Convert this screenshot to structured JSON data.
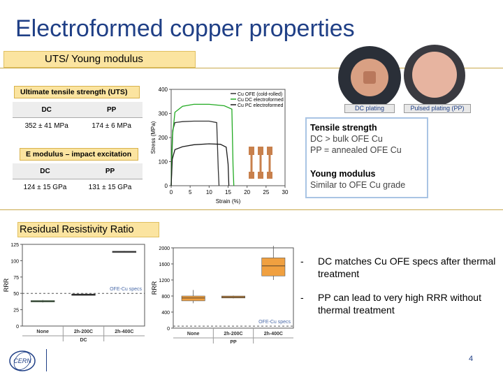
{
  "title": "Electroformed copper properties",
  "uts_section": "UTS/ Young modulus",
  "uts_table": {
    "header": "Ultimate tensile strength (UTS)",
    "columns": [
      "DC",
      "PP"
    ],
    "values": [
      "352 ± 41 MPa",
      "174 ± 6 MPa"
    ]
  },
  "emod_table": {
    "header": "E modulus – impact excitation",
    "columns": [
      "DC",
      "PP"
    ],
    "values": [
      "124 ± 15 GPa",
      "131 ± 15 GPa"
    ]
  },
  "info": {
    "tensile_title": "Tensile strength",
    "tensile_line1": "DC > bulk OFE Cu",
    "tensile_line2": "PP = annealed OFE Cu",
    "young_title": "Young modulus",
    "young_line1": "Similar to OFE Cu grade"
  },
  "plating_captions": [
    "DC plating",
    "Pulsed plating (PP)"
  ],
  "rrr_section": "Residual Resistivity Ratio",
  "bullets": [
    {
      "dash": "-",
      "text": "DC matches Cu OFE specs after thermal treatment"
    },
    {
      "dash": "-",
      "text": "PP can lead to very high RRR without thermal treatment"
    }
  ],
  "page_number": "4",
  "logo_text": "CERN",
  "chart_data": [
    {
      "type": "line",
      "xlabel": "Strain (%)",
      "ylabel": "Stress (MPa)",
      "xlim": [
        0,
        30
      ],
      "ylim": [
        0,
        400
      ],
      "xticks": [
        "0",
        "5",
        "10",
        "15",
        "20",
        "25",
        "30"
      ],
      "yticks": [
        "0",
        "100",
        "200",
        "300",
        "400"
      ],
      "legend_position": "top-right",
      "series": [
        {
          "name": "Cu OFE (cold-rolled)",
          "color": "#333333",
          "points": [
            [
              0,
              0
            ],
            [
              0.4,
              230
            ],
            [
              1,
              262
            ],
            [
              3,
              266
            ],
            [
              6,
              268
            ],
            [
              10,
              268
            ],
            [
              12,
              262
            ],
            [
              12.4,
              70
            ],
            [
              12.6,
              0
            ]
          ]
        },
        {
          "name": "Cu DC electroformed",
          "color": "#22aa22",
          "points": [
            [
              0,
              0
            ],
            [
              0.3,
              200
            ],
            [
              1,
              305
            ],
            [
              3,
              330
            ],
            [
              6,
              338
            ],
            [
              10,
              338
            ],
            [
              14,
              332
            ],
            [
              16,
              318
            ],
            [
              16.3,
              80
            ],
            [
              16.5,
              0
            ]
          ]
        },
        {
          "name": "Cu PC electroformed",
          "color": "#1a1a1a",
          "points": [
            [
              0,
              0
            ],
            [
              0.3,
              110
            ],
            [
              1,
              150
            ],
            [
              3,
              162
            ],
            [
              6,
              170
            ],
            [
              10,
              174
            ],
            [
              13,
              172
            ],
            [
              14.5,
              160
            ],
            [
              15,
              90
            ],
            [
              15.2,
              0
            ]
          ]
        }
      ]
    },
    {
      "type": "box",
      "ylabel": "RRR",
      "xlabel": "DC",
      "ylim": [
        0,
        125
      ],
      "yticks": [
        "0",
        "25",
        "50",
        "75",
        "100",
        "125"
      ],
      "categories": [
        "None",
        "2h-200C",
        "2h-400C"
      ],
      "spec_label": "OFE-Cu specs",
      "spec_value": 50,
      "boxes": [
        {
          "category": "None",
          "min": 36,
          "q1": 37,
          "median": 38,
          "q3": 39,
          "max": 40,
          "color": "#3a9a3a"
        },
        {
          "category": "2h-200C",
          "min": 47.5,
          "q1": 48,
          "median": 48.5,
          "q3": 49,
          "max": 49.5,
          "color": "#222222"
        },
        {
          "category": "2h-400C",
          "min": 113,
          "q1": 113.5,
          "median": 114,
          "q3": 114.5,
          "max": 115,
          "color": "#555555"
        }
      ]
    },
    {
      "type": "box",
      "ylabel": "RRR",
      "xlabel": "PP",
      "ylim": [
        0,
        2000
      ],
      "yticks": [
        "0",
        "400",
        "800",
        "1200",
        "1600",
        "2000"
      ],
      "categories": [
        "None",
        "2h-200C",
        "2h-400C"
      ],
      "spec_label": "OFE-Cu specs",
      "spec_value": 50,
      "boxes": [
        {
          "category": "None",
          "min": 620,
          "q1": 680,
          "median": 750,
          "q3": 800,
          "max": 950,
          "color": "#f0a040"
        },
        {
          "category": "2h-200C",
          "min": 740,
          "q1": 750,
          "median": 775,
          "q3": 800,
          "max": 810,
          "color": "#f0a040"
        },
        {
          "category": "2h-400C",
          "min": 1200,
          "q1": 1300,
          "median": 1550,
          "q3": 1750,
          "max": 2050,
          "color": "#f0a040"
        }
      ]
    }
  ]
}
